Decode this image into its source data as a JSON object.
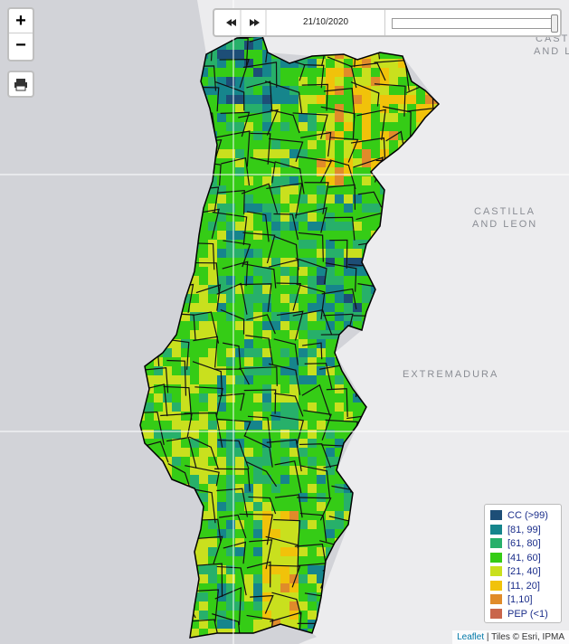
{
  "controls": {
    "zoom_in": "+",
    "zoom_out": "−"
  },
  "timeline": {
    "date": "21/10/2020"
  },
  "labels": {
    "region_top_1": "CAST",
    "region_top_2": "AND L",
    "region_mid_1": "CASTILLA",
    "region_mid_2": "AND LEON",
    "region_south": "EXTREMADURA"
  },
  "legend": [
    {
      "label": "CC (>99)",
      "color": "#1d4e77"
    },
    {
      "label": "[81, 99]",
      "color": "#16858c"
    },
    {
      "label": "[61, 80]",
      "color": "#27b06a"
    },
    {
      "label": "[41, 60]",
      "color": "#35cc16"
    },
    {
      "label": "[21, 40]",
      "color": "#c9e01e"
    },
    {
      "label": "[11, 20]",
      "color": "#f1c20a"
    },
    {
      "label": "[1,10]",
      "color": "#e08b2a"
    },
    {
      "label": "PEP (<1)",
      "color": "#c9654b"
    }
  ],
  "attribution": {
    "link": "Leaflet",
    "text": "| Tiles © Esri, IPMA"
  }
}
